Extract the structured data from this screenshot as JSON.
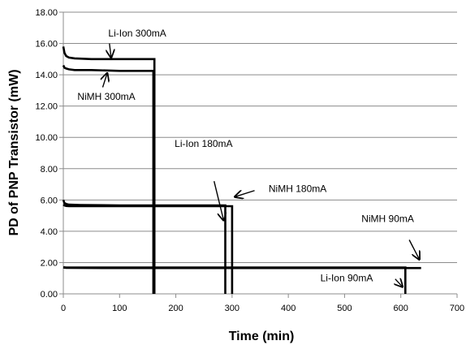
{
  "chart_data": {
    "type": "line",
    "xlabel": "Time (min)",
    "ylabel": "PD of PNP Transistor (mW)",
    "xlim": [
      0,
      700
    ],
    "ylim": [
      0,
      18
    ],
    "x_ticks": [
      0,
      100,
      200,
      300,
      400,
      500,
      600,
      700
    ],
    "y_ticks": [
      "0.00",
      "2.00",
      "4.00",
      "6.00",
      "8.00",
      "10.00",
      "12.00",
      "14.00",
      "16.00",
      "18.00"
    ],
    "grid": "horizontal",
    "legend": "none",
    "series": [
      {
        "name": "Li-Ion 300mA",
        "x": [
          0,
          2,
          5,
          10,
          20,
          50,
          100,
          162,
          162
        ],
        "y": [
          15.8,
          15.4,
          15.2,
          15.1,
          15.05,
          15.0,
          15.0,
          15.0,
          0.0
        ]
      },
      {
        "name": "NiMH 300mA",
        "x": [
          0,
          2,
          5,
          10,
          20,
          50,
          100,
          160,
          160
        ],
        "y": [
          14.6,
          14.45,
          14.4,
          14.35,
          14.3,
          14.3,
          14.25,
          14.25,
          0.0
        ]
      },
      {
        "name": "Li-Ion 180mA",
        "x": [
          0,
          2,
          5,
          10,
          30,
          100,
          200,
          288,
          288
        ],
        "y": [
          6.0,
          5.8,
          5.75,
          5.7,
          5.68,
          5.65,
          5.65,
          5.65,
          0.0
        ]
      },
      {
        "name": "NiMH 180mA",
        "x": [
          0,
          2,
          5,
          10,
          30,
          100,
          200,
          300,
          300
        ],
        "y": [
          5.7,
          5.65,
          5.62,
          5.6,
          5.6,
          5.6,
          5.6,
          5.6,
          0.0
        ]
      },
      {
        "name": "Li-Ion 90mA",
        "x": [
          0,
          5,
          100,
          300,
          500,
          608,
          608
        ],
        "y": [
          1.7,
          1.68,
          1.68,
          1.68,
          1.68,
          1.68,
          0.0
        ]
      },
      {
        "name": "NiMH 90mA",
        "x": [
          0,
          5,
          100,
          300,
          500,
          636
        ],
        "y": [
          1.68,
          1.66,
          1.65,
          1.65,
          1.65,
          1.65
        ]
      }
    ],
    "annotations": [
      {
        "text": "Li-Ion 300mA",
        "text_x": 80,
        "text_y": 16.45,
        "anchor": "start",
        "arrow_from": [
          82,
          16.0
        ],
        "arrow_to": [
          85,
          15.1
        ]
      },
      {
        "text": "NiMH 300mA",
        "text_x": 25,
        "text_y": 12.4,
        "anchor": "start",
        "arrow_from": [
          70,
          13.2
        ],
        "arrow_to": [
          78,
          14.1
        ]
      },
      {
        "text": "Li-Ion 180mA",
        "text_x": 198,
        "text_y": 9.4,
        "anchor": "start",
        "arrow_from": [
          268,
          7.2
        ],
        "arrow_to": [
          285,
          4.7
        ]
      },
      {
        "text": "NiMH 180mA",
        "text_x": 365,
        "text_y": 6.5,
        "anchor": "start",
        "arrow_from": [
          340,
          6.6
        ],
        "arrow_to": [
          305,
          6.2
        ]
      },
      {
        "text": "NiMH 90mA",
        "text_x": 530,
        "text_y": 4.6,
        "anchor": "start",
        "arrow_from": [
          615,
          3.45
        ],
        "arrow_to": [
          633,
          2.2
        ]
      },
      {
        "text": "Li-Ion 90mA",
        "text_x": 457,
        "text_y": 0.8,
        "anchor": "start",
        "arrow_from": [
          590,
          0.95
        ],
        "arrow_to": [
          603,
          0.45
        ]
      }
    ]
  }
}
